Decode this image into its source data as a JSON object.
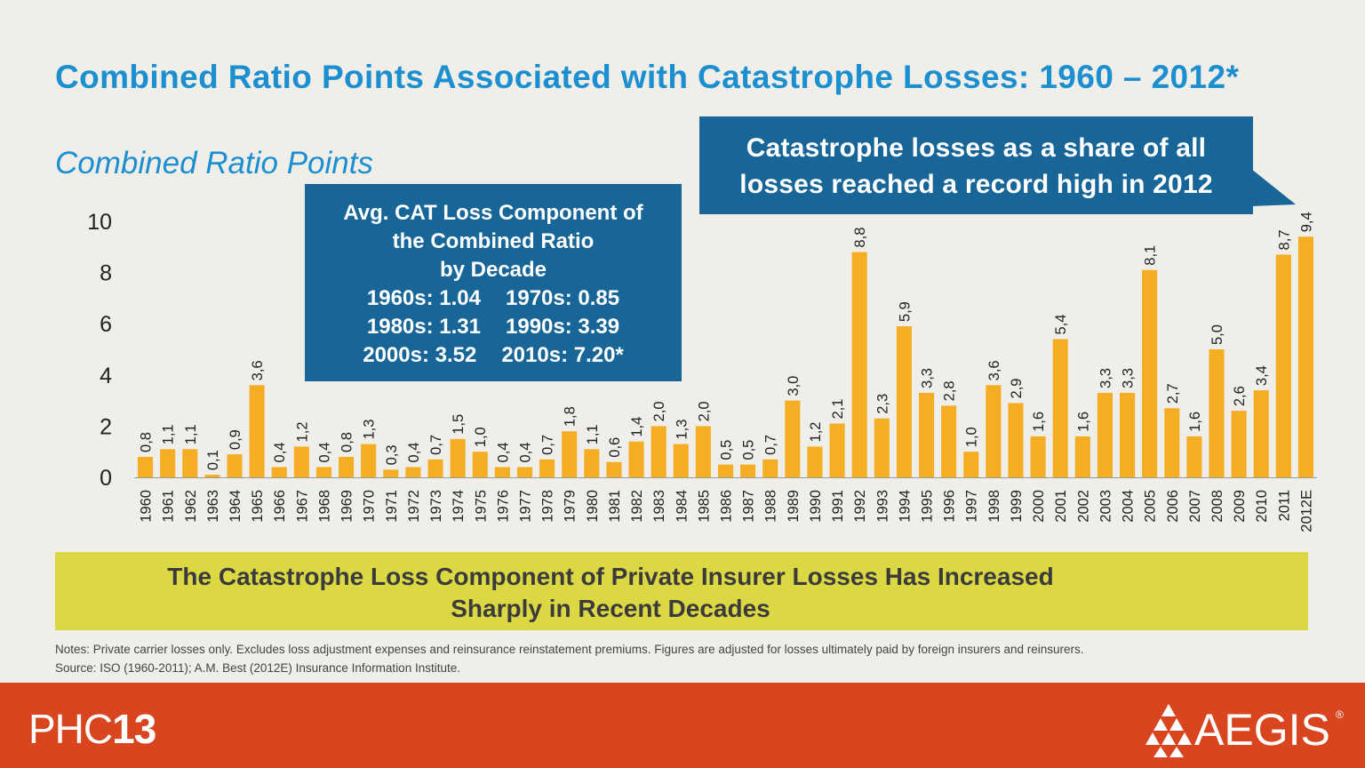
{
  "title": "Combined Ratio Points Associated with Catastrophe Losses: 1960 – 2012*",
  "subtitle": "Combined Ratio Points",
  "decade_box": {
    "heading_line1": "Avg. CAT  Loss Component of",
    "heading_line2": "the Combined Ratio",
    "heading_line3": "by Decade",
    "rows": [
      [
        "1960s: 1.04",
        "1970s: 0.85"
      ],
      [
        "1980s: 1.31",
        "1990s: 3.39"
      ],
      [
        "2000s: 3.52",
        "2010s: 7.20*"
      ]
    ]
  },
  "callout": {
    "line1": "Catastrophe losses as a share of all",
    "line2": "losses reached a record high in 2012"
  },
  "banner": {
    "line1": "The Catastrophe Loss Component of Private Insurer Losses Has Increased",
    "line2": "Sharply in Recent Decades"
  },
  "notes": {
    "line1": "Notes: Private carrier losses only.  Excludes loss adjustment expenses and reinsurance reinstatement premiums. Figures are adjusted for losses ultimately paid by foreign insurers and reinsurers.",
    "line2": "Source: ISO  (1960-2011); A.M.  Best (2012E) Insurance Information Institute."
  },
  "footer": {
    "left_logo_light": "PHC",
    "left_logo_bold": "13",
    "right_logo": "AEGIS",
    "right_logo_mark": "®"
  },
  "colors": {
    "bar": "#f5ad24",
    "title": "#1c8fd0",
    "box": "#176697",
    "banner": "#dcd844",
    "footer": "#d9451e",
    "background": "#f0eee9"
  },
  "chart_data": {
    "type": "bar",
    "categories": [
      "1960",
      "1961",
      "1962",
      "1963",
      "1964",
      "1965",
      "1966",
      "1967",
      "1968",
      "1969",
      "1970",
      "1971",
      "1972",
      "1973",
      "1974",
      "1975",
      "1976",
      "1977",
      "1978",
      "1979",
      "1980",
      "1981",
      "1982",
      "1983",
      "1984",
      "1985",
      "1986",
      "1987",
      "1988",
      "1989",
      "1990",
      "1991",
      "1992",
      "1993",
      "1994",
      "1995",
      "1996",
      "1997",
      "1998",
      "1999",
      "2000",
      "2001",
      "2002",
      "2003",
      "2004",
      "2005",
      "2006",
      "2007",
      "2008",
      "2009",
      "2010",
      "2011",
      "2012E"
    ],
    "values": [
      0.8,
      1.1,
      1.1,
      0.1,
      0.9,
      3.6,
      0.4,
      1.2,
      0.4,
      0.8,
      1.3,
      0.3,
      0.4,
      0.7,
      1.5,
      1.0,
      0.4,
      0.4,
      0.7,
      1.8,
      1.1,
      0.6,
      1.4,
      2.0,
      1.3,
      2.0,
      0.5,
      0.5,
      0.7,
      3.0,
      1.2,
      2.1,
      8.8,
      2.3,
      5.9,
      3.3,
      2.8,
      1.0,
      3.6,
      2.9,
      1.6,
      5.4,
      1.6,
      3.3,
      3.3,
      8.1,
      2.7,
      1.6,
      5.0,
      2.6,
      3.4,
      8.7,
      9.4
    ],
    "data_labels": [
      "0,8",
      "1,1",
      "1,1",
      "0,1",
      "0,9",
      "3,6",
      "0,4",
      "1,2",
      "0,4",
      "0,8",
      "1,3",
      "0,3",
      "0,4",
      "0,7",
      "1,5",
      "1,0",
      "0,4",
      "0,4",
      "0,7",
      "1,8",
      "1,1",
      "0,6",
      "1,4",
      "2,0",
      "1,3",
      "2,0",
      "0,5",
      "0,5",
      "0,7",
      "3,0",
      "1,2",
      "2,1",
      "8,8",
      "2,3",
      "5,9",
      "3,3",
      "2,8",
      "1,0",
      "3,6",
      "2,9",
      "1,6",
      "5,4",
      "1,6",
      "3,3",
      "3,3",
      "8,1",
      "2,7",
      "1,6",
      "5,0",
      "2,6",
      "3,4",
      "8,7",
      "9,4"
    ],
    "yticks": [
      "0",
      "2",
      "4",
      "6",
      "8",
      "10"
    ],
    "ylim": [
      0,
      10
    ],
    "grid": false,
    "xlabel": "",
    "ylabel": ""
  }
}
